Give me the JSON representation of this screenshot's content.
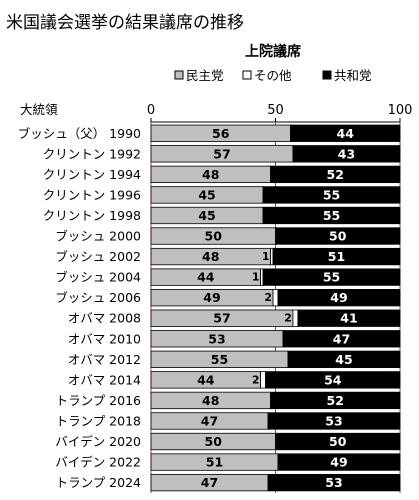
{
  "title": "米国議会選挙の結果議席の推移",
  "chart_data": {
    "type": "bar",
    "stacked": true,
    "orientation": "horizontal",
    "subtitle": "上院議席",
    "category_header": "大統領",
    "xlim": [
      0,
      100
    ],
    "ticks": [
      "0",
      "50",
      "100"
    ],
    "legend_position": "top",
    "grid": true,
    "categories": [
      "ブッシュ（父） 1990",
      "クリントン 1992",
      "クリントン 1994",
      "クリントン 1996",
      "クリントン 1998",
      "ブッシュ 2000",
      "ブッシュ 2002",
      "ブッシュ 2004",
      "ブッシュ 2006",
      "オバマ 2008",
      "オバマ 2010",
      "オバマ 2012",
      "オバマ 2014",
      "トランプ 2016",
      "トランプ 2018",
      "バイデン 2020",
      "バイデン 2022",
      "トランプ 2024"
    ],
    "series": [
      {
        "name": "民主党",
        "color": "#bfbfbf",
        "values": [
          56,
          57,
          48,
          45,
          45,
          50,
          48,
          44,
          49,
          57,
          53,
          55,
          44,
          48,
          47,
          50,
          51,
          47
        ]
      },
      {
        "name": "その他",
        "color": "#ffffff",
        "values": [
          0,
          0,
          0,
          0,
          0,
          0,
          1,
          1,
          2,
          2,
          0,
          0,
          2,
          0,
          0,
          0,
          0,
          0
        ]
      },
      {
        "name": "共和党",
        "color": "#000000",
        "values": [
          44,
          43,
          52,
          55,
          55,
          50,
          51,
          55,
          49,
          41,
          47,
          45,
          54,
          52,
          53,
          50,
          49,
          53
        ]
      }
    ]
  }
}
